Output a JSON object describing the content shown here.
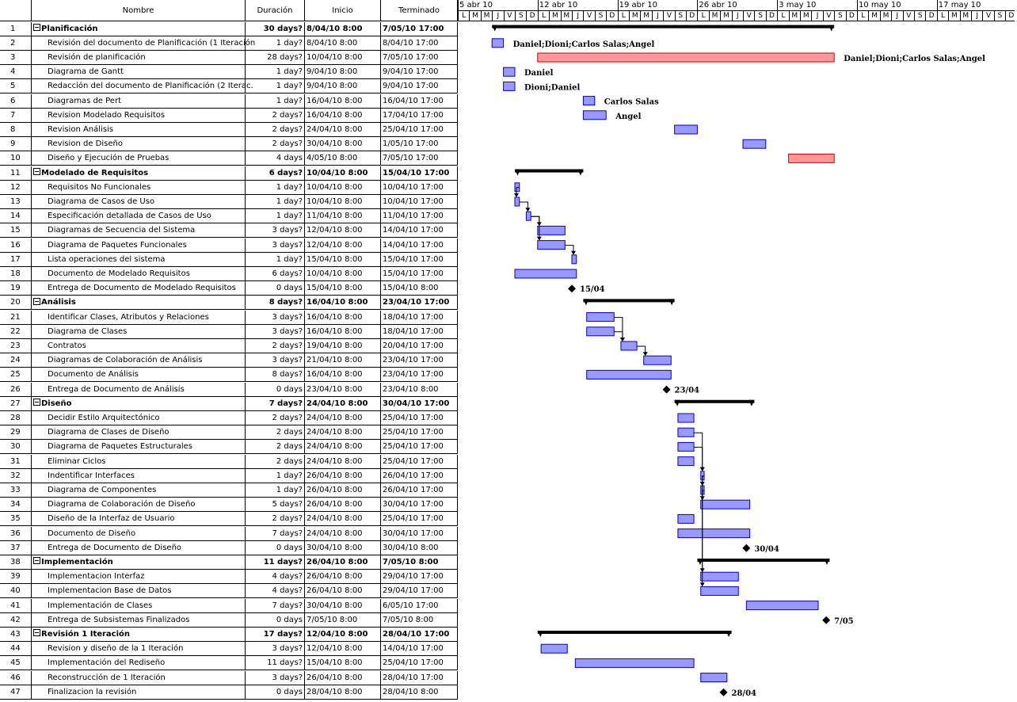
{
  "headers": {
    "id": "",
    "name": "Nombre",
    "duration": "Duración",
    "start": "Inicio",
    "end": "Terminado"
  },
  "timescale": {
    "weeks": [
      "5 abr 10",
      "12 abr 10",
      "19 abr 10",
      "26 abr 10",
      "3 may 10",
      "10 may 10",
      "17 may 10"
    ],
    "days": [
      "L",
      "M",
      "M",
      "J",
      "V",
      "S",
      "D"
    ]
  },
  "colors": {
    "task": "#9999ff",
    "critical": "#ff9999",
    "summary": "#000000"
  },
  "tasks": [
    {
      "id": "1",
      "name": "Planificación",
      "duration": "30 days?",
      "start": "8/04/10 8:00",
      "end": "7/05/10 17:00",
      "summary": true,
      "type": "summary",
      "s": 3,
      "e": 33
    },
    {
      "id": "2",
      "name": "Revisión del documento de Planificación (1 Iteración",
      "duration": "1 day?",
      "start": "8/04/10 8:00",
      "end": "8/04/10 17:00",
      "type": "task",
      "s": 3,
      "e": 4,
      "label": "Daniel;Dioni;Carlos Salas;Angel"
    },
    {
      "id": "3",
      "name": "Revisión de planificación",
      "duration": "28 days?",
      "start": "10/04/10 8:00",
      "end": "7/05/10 17:00",
      "type": "crit",
      "s": 7,
      "e": 33,
      "label": "Daniel;Dioni;Carlos Salas;Angel"
    },
    {
      "id": "4",
      "name": "Diagrama de Gantt",
      "duration": "1 day?",
      "start": "9/04/10 8:00",
      "end": "9/04/10 17:00",
      "type": "task",
      "s": 4,
      "e": 5,
      "label": "Daniel"
    },
    {
      "id": "5",
      "name": "Redacción del documento de Planificación (2 Iterac.",
      "duration": "1 day?",
      "start": "9/04/10 8:00",
      "end": "9/04/10 17:00",
      "type": "task",
      "s": 4,
      "e": 5,
      "label": "Dioni;Daniel"
    },
    {
      "id": "6",
      "name": "Diagramas de Pert",
      "duration": "1 day?",
      "start": "16/04/10 8:00",
      "end": "16/04/10 17:00",
      "type": "task",
      "s": 11,
      "e": 12,
      "label": "Carlos Salas"
    },
    {
      "id": "7",
      "name": "Revision Modelado Requisitos",
      "duration": "2 days?",
      "start": "16/04/10 8:00",
      "end": "17/04/10 17:00",
      "type": "task",
      "s": 11,
      "e": 13,
      "label": "Angel"
    },
    {
      "id": "8",
      "name": "Revision Análisis",
      "duration": "2 days?",
      "start": "24/04/10 8:00",
      "end": "25/04/10 17:00",
      "type": "task",
      "s": 19,
      "e": 21
    },
    {
      "id": "9",
      "name": "Revision de Diseño",
      "duration": "2 days?",
      "start": "30/04/10 8:00",
      "end": "1/05/10 17:00",
      "type": "task",
      "s": 25,
      "e": 27
    },
    {
      "id": "10",
      "name": "Diseño y Ejecución de Pruebas",
      "duration": "4 days",
      "start": "4/05/10 8:00",
      "end": "7/05/10 17:00",
      "type": "crit",
      "s": 29,
      "e": 33
    },
    {
      "id": "11",
      "name": "Modelado de Requisitos",
      "duration": "6 days?",
      "start": "10/04/10 8:00",
      "end": "15/04/10 17:00",
      "summary": true,
      "type": "summary",
      "s": 5,
      "e": 11
    },
    {
      "id": "12",
      "name": "Requisitos No Funcionales",
      "duration": "1 day?",
      "start": "10/04/10 8:00",
      "end": "10/04/10 17:00",
      "type": "task",
      "s": 5,
      "e": 5.4
    },
    {
      "id": "13",
      "name": "Diagrama de Casos de Uso",
      "duration": "1 day?",
      "start": "10/04/10 8:00",
      "end": "10/04/10 17:00",
      "type": "task",
      "s": 5,
      "e": 5.4
    },
    {
      "id": "14",
      "name": "Especificación detallada de Casos de Uso",
      "duration": "1 day?",
      "start": "11/04/10 8:00",
      "end": "11/04/10 17:00",
      "type": "task",
      "s": 6,
      "e": 6.4
    },
    {
      "id": "15",
      "name": "Diagramas de Secuencia del Sistema",
      "duration": "3 days?",
      "start": "12/04/10 8:00",
      "end": "14/04/10 17:00",
      "type": "task",
      "s": 7,
      "e": 9.4
    },
    {
      "id": "16",
      "name": "Diagrama de Paquetes Funcionales",
      "duration": "3 days?",
      "start": "12/04/10 8:00",
      "end": "14/04/10 17:00",
      "type": "task",
      "s": 7,
      "e": 9.4
    },
    {
      "id": "17",
      "name": "Lista operaciones del sistema",
      "duration": "1 day?",
      "start": "15/04/10 8:00",
      "end": "15/04/10 17:00",
      "type": "task",
      "s": 10,
      "e": 10.4
    },
    {
      "id": "18",
      "name": "Documento de Modelado Requisitos",
      "duration": "6 days?",
      "start": "10/04/10 8:00",
      "end": "15/04/10 17:00",
      "type": "task",
      "s": 5,
      "e": 10.4
    },
    {
      "id": "19",
      "name": "Entrega de Documento de Modelado Requisitos",
      "duration": "0 days",
      "start": "15/04/10 8:00",
      "end": "15/04/10 8:00",
      "type": "milestone",
      "s": 10,
      "label": "15/04"
    },
    {
      "id": "20",
      "name": "Análisis",
      "duration": "8 days?",
      "start": "16/04/10 8:00",
      "end": "23/04/10 17:00",
      "summary": true,
      "type": "summary",
      "s": 11,
      "e": 19
    },
    {
      "id": "21",
      "name": "Identificar Clases, Atributos y Relaciones",
      "duration": "3 days?",
      "start": "16/04/10 8:00",
      "end": "18/04/10 17:00",
      "type": "task",
      "s": 11.3,
      "e": 13.7
    },
    {
      "id": "22",
      "name": "Diagrama de Clases",
      "duration": "3 days?",
      "start": "16/04/10 8:00",
      "end": "18/04/10 17:00",
      "type": "task",
      "s": 11.3,
      "e": 13.7
    },
    {
      "id": "23",
      "name": "Contratos",
      "duration": "2 days?",
      "start": "19/04/10 8:00",
      "end": "20/04/10 17:00",
      "type": "task",
      "s": 14.3,
      "e": 15.7
    },
    {
      "id": "24",
      "name": "Diagramas de Colaboración de Análisis",
      "duration": "3 days?",
      "start": "21/04/10 8:00",
      "end": "23/04/10 17:00",
      "type": "task",
      "s": 16.3,
      "e": 18.7
    },
    {
      "id": "25",
      "name": "Documento de Análisis",
      "duration": "8 days?",
      "start": "16/04/10 8:00",
      "end": "23/04/10 17:00",
      "type": "task",
      "s": 11.3,
      "e": 18.7
    },
    {
      "id": "26",
      "name": "Entrega de Documento de Análisis",
      "duration": "0 days",
      "start": "23/04/10 8:00",
      "end": "23/04/10 8:00",
      "type": "milestone",
      "s": 18.3,
      "label": "23/04"
    },
    {
      "id": "27",
      "name": "Diseño",
      "duration": "7 days?",
      "start": "24/04/10 8:00",
      "end": "30/04/10 17:00",
      "summary": true,
      "type": "summary",
      "s": 19,
      "e": 26
    },
    {
      "id": "28",
      "name": "Decidir Estilo Arquitectónico",
      "duration": "2 days?",
      "start": "24/04/10 8:00",
      "end": "25/04/10 17:00",
      "type": "task",
      "s": 19.3,
      "e": 20.7
    },
    {
      "id": "29",
      "name": "Diagrama de Clases de Diseño",
      "duration": "2 days",
      "start": "24/04/10 8:00",
      "end": "25/04/10 17:00",
      "type": "task",
      "s": 19.3,
      "e": 20.7
    },
    {
      "id": "30",
      "name": "Diagrama de Paquetes Estructurales",
      "duration": "2 days",
      "start": "24/04/10 8:00",
      "end": "25/04/10 17:00",
      "type": "task",
      "s": 19.3,
      "e": 20.7
    },
    {
      "id": "31",
      "name": "Eliminar Ciclos",
      "duration": "2 days",
      "start": "24/04/10 8:00",
      "end": "25/04/10 17:00",
      "type": "task",
      "s": 19.3,
      "e": 20.7
    },
    {
      "id": "32",
      "name": "Indentificar Interfaces",
      "duration": "1 day?",
      "start": "26/04/10 8:00",
      "end": "26/04/10 17:00",
      "type": "task",
      "s": 21.3,
      "e": 21.6
    },
    {
      "id": "33",
      "name": "Diagrama de Componentes",
      "duration": "1 day?",
      "start": "26/04/10 8:00",
      "end": "26/04/10 17:00",
      "type": "task",
      "s": 21.3,
      "e": 21.6
    },
    {
      "id": "34",
      "name": "Diagrama de Colaboración de Diseño",
      "duration": "5 days?",
      "start": "26/04/10 8:00",
      "end": "30/04/10 17:00",
      "type": "task",
      "s": 21.3,
      "e": 25.6
    },
    {
      "id": "35",
      "name": "Diseño de la Interfaz de Usuario",
      "duration": "2 days?",
      "start": "24/04/10 8:00",
      "end": "25/04/10 17:00",
      "type": "task",
      "s": 19.3,
      "e": 20.7
    },
    {
      "id": "36",
      "name": "Documento de Diseño",
      "duration": "7 days?",
      "start": "24/04/10 8:00",
      "end": "30/04/10 17:00",
      "type": "task",
      "s": 19.3,
      "e": 25.6
    },
    {
      "id": "37",
      "name": "Entrega de Documento de Diseño",
      "duration": "0 days",
      "start": "30/04/10 8:00",
      "end": "30/04/10 8:00",
      "type": "milestone",
      "s": 25.3,
      "label": "30/04"
    },
    {
      "id": "38",
      "name": "Implementación",
      "duration": "11 days?",
      "start": "26/04/10 8:00",
      "end": "7/05/10 8:00",
      "summary": true,
      "type": "summary",
      "s": 21,
      "e": 32.6
    },
    {
      "id": "39",
      "name": "Implementacion Interfaz",
      "duration": "4 days?",
      "start": "26/04/10 8:00",
      "end": "29/04/10 17:00",
      "type": "task",
      "s": 21.3,
      "e": 24.6
    },
    {
      "id": "40",
      "name": "Implementacion Base de Datos",
      "duration": "4 days?",
      "start": "26/04/10 8:00",
      "end": "29/04/10 17:00",
      "type": "task",
      "s": 21.3,
      "e": 24.6
    },
    {
      "id": "41",
      "name": "Implementación de Clases",
      "duration": "7 days?",
      "start": "30/04/10 8:00",
      "end": "6/05/10 17:00",
      "type": "task",
      "s": 25.3,
      "e": 31.6
    },
    {
      "id": "42",
      "name": "Entrega de Subsistemas Finalizados",
      "duration": "0 days",
      "start": "7/05/10 8:00",
      "end": "7/05/10 8:00",
      "type": "milestone",
      "s": 32.3,
      "label": "7/05"
    },
    {
      "id": "43",
      "name": "Revisión 1 Iteración",
      "duration": "17 days?",
      "start": "12/04/10 8:00",
      "end": "28/04/10 17:00",
      "summary": true,
      "type": "summary",
      "s": 7,
      "e": 24
    },
    {
      "id": "44",
      "name": "Revision y diseño de la 1 Iteración",
      "duration": "3 days?",
      "start": "12/04/10 8:00",
      "end": "14/04/10 17:00",
      "type": "task",
      "s": 7.3,
      "e": 9.6
    },
    {
      "id": "45",
      "name": "Implementación del Rediseño",
      "duration": "11 days?",
      "start": "15/04/10 8:00",
      "end": "25/04/10 17:00",
      "type": "task",
      "s": 10.3,
      "e": 20.7
    },
    {
      "id": "46",
      "name": "Reconstrucción de 1 Iteración",
      "duration": "3 days?",
      "start": "26/04/10 8:00",
      "end": "28/04/10 17:00",
      "type": "task",
      "s": 21.3,
      "e": 23.6
    },
    {
      "id": "47",
      "name": "Finalizacion la revisión",
      "duration": "0 days",
      "start": "28/04/10 8:00",
      "end": "28/04/10 8:00",
      "type": "milestone",
      "s": 23.3,
      "label": "28/04"
    }
  ]
}
